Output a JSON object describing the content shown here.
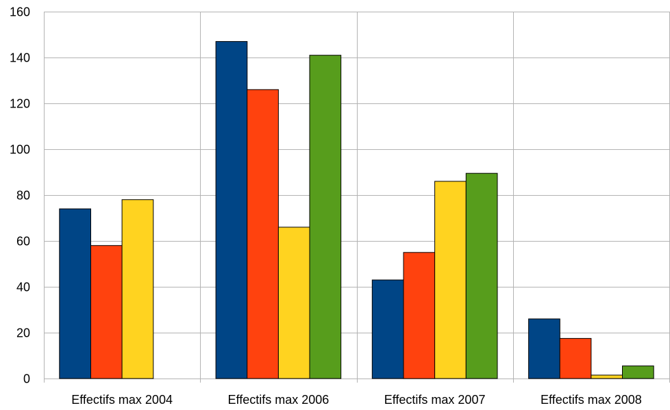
{
  "chart_data": {
    "type": "bar",
    "title": "",
    "xlabel": "",
    "ylabel": "",
    "ylim": [
      0,
      160
    ],
    "yticks": [
      0,
      20,
      40,
      60,
      80,
      100,
      120,
      140,
      160
    ],
    "grid": true,
    "legend": "none",
    "categories": [
      "Effectifs max 2004",
      "Effectifs max 2006",
      "Effectifs max 2007",
      "Effectifs max 2008"
    ],
    "series": [
      {
        "color": "#004586",
        "values": [
          74,
          147,
          43,
          26
        ]
      },
      {
        "color": "#ff420e",
        "values": [
          58,
          126,
          55,
          17.5
        ]
      },
      {
        "color": "#ffd320",
        "values": [
          78,
          66,
          86,
          1.5
        ]
      },
      {
        "color": "#579d1c",
        "values": [
          0,
          141,
          89.5,
          5.5
        ]
      }
    ]
  }
}
